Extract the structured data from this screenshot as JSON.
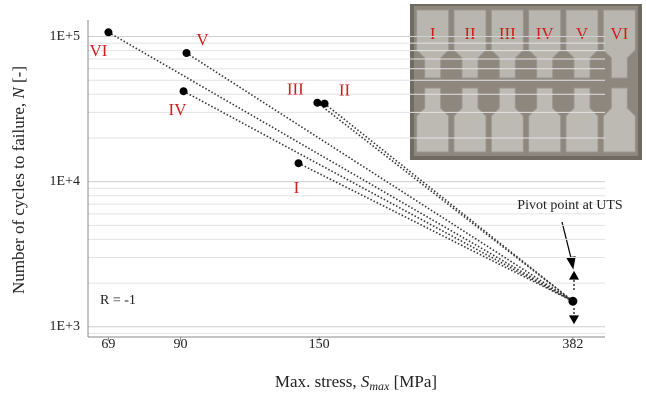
{
  "chart_data": {
    "type": "scatter",
    "x_label": [
      "Max. stress, ",
      "S",
      "max",
      " [MPa]"
    ],
    "y_label": [
      "Number of cycles to failure, ",
      "N",
      " [-]"
    ],
    "log_x": true,
    "log_y": true,
    "xlim": [
      64,
      430
    ],
    "ylim": [
      850,
      130000
    ],
    "xticks": [
      69,
      90,
      150,
      382
    ],
    "yticks": [
      {
        "value": 1000,
        "label": "1E+3"
      },
      {
        "value": 10000,
        "label": "1E+4"
      },
      {
        "value": 100000,
        "label": "1E+5"
      }
    ],
    "grid": true,
    "minor_grid": true,
    "labels": [
      "VI",
      "V",
      "IV",
      "III",
      "II",
      "I"
    ],
    "x": [
      69,
      92,
      91,
      149,
      153,
      139
    ],
    "y": [
      107000,
      77000,
      42000,
      35000,
      34500,
      13400
    ],
    "pivot": {
      "x": 382,
      "y": 1500,
      "label": "Pivot point at UTS"
    },
    "color": "#000000",
    "annotation": "R = -1",
    "inset_labels": [
      "I",
      "II",
      "III",
      "IV",
      "V",
      "VI"
    ]
  }
}
